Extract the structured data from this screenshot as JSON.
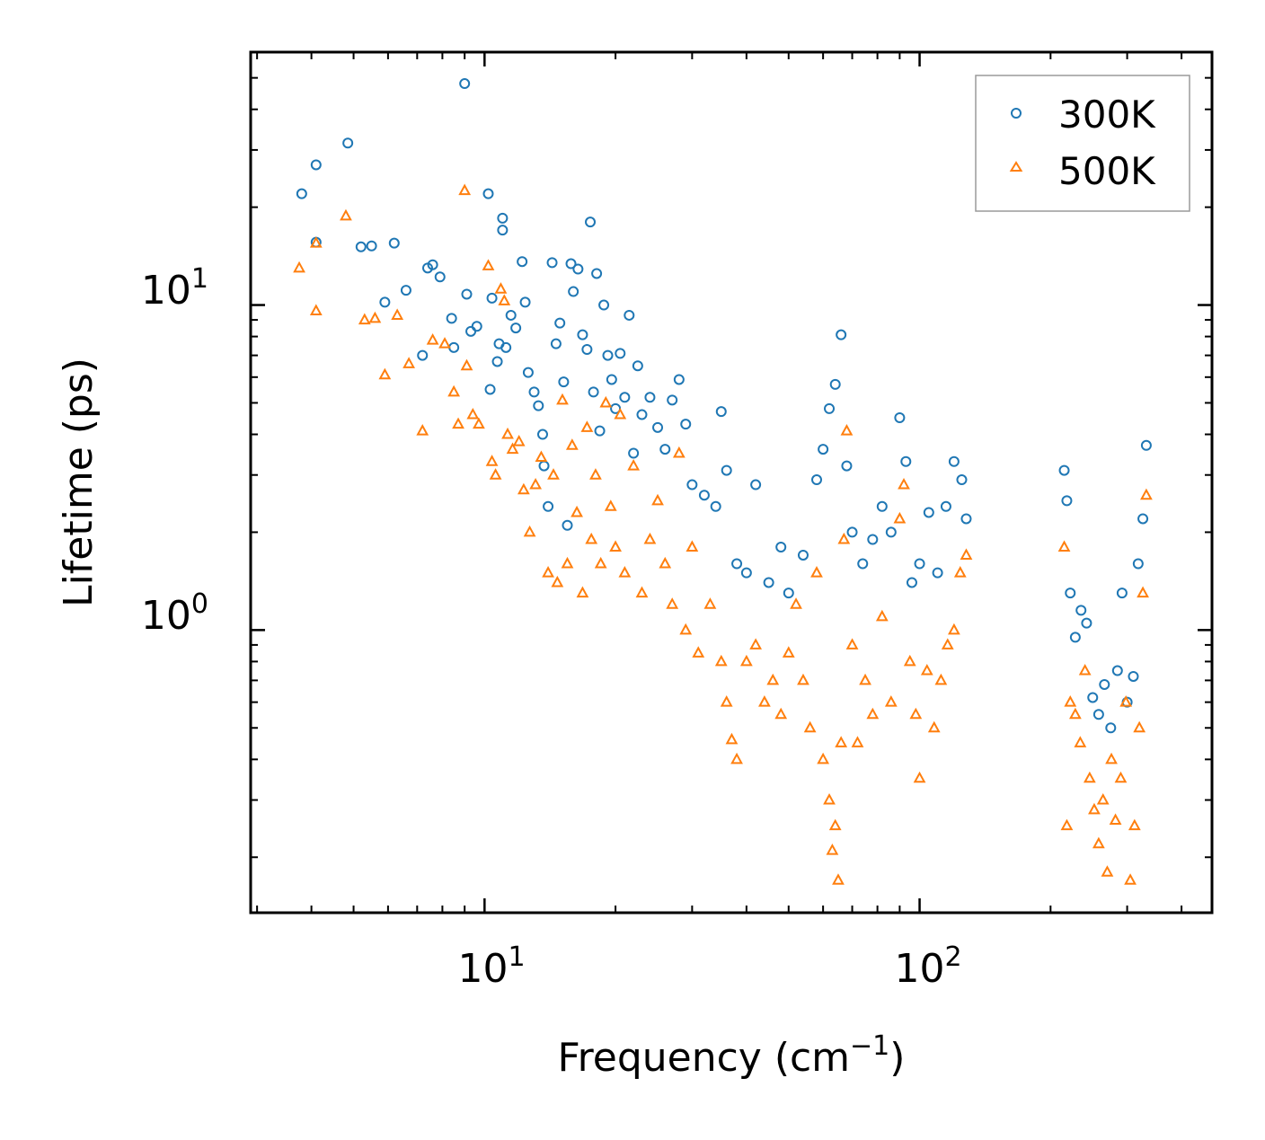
{
  "chart_data": {
    "type": "scatter",
    "title": "",
    "xlabel": "Frequency (cm",
    "xlabel_superscript": "−1",
    "xlabel_suffix": ")",
    "ylabel": "Lifetime (ps)",
    "xscale": "log",
    "yscale": "log",
    "xlim": [
      2.9,
      470
    ],
    "ylim": [
      0.135,
      60
    ],
    "legend_position": "top-right",
    "x_tick_labels": [
      {
        "base": "10",
        "exp": "1",
        "value": 10
      },
      {
        "base": "10",
        "exp": "2",
        "value": 100
      }
    ],
    "y_tick_labels": [
      {
        "base": "10",
        "exp": "0",
        "value": 1
      },
      {
        "base": "10",
        "exp": "1",
        "value": 10
      }
    ],
    "series": [
      {
        "name": "300K",
        "marker": "circle",
        "color": "#1f77b4",
        "points": [
          [
            3.8,
            22.0
          ],
          [
            4.1,
            27.0
          ],
          [
            4.1,
            15.6
          ],
          [
            4.85,
            31.5
          ],
          [
            5.2,
            15.1
          ],
          [
            5.5,
            15.2
          ],
          [
            6.2,
            15.5
          ],
          [
            5.9,
            10.2
          ],
          [
            6.6,
            11.1
          ],
          [
            7.2,
            7.0
          ],
          [
            7.4,
            13.0
          ],
          [
            7.6,
            13.3
          ],
          [
            7.9,
            12.2
          ],
          [
            8.4,
            9.1
          ],
          [
            8.5,
            7.4
          ],
          [
            9.0,
            48.0
          ],
          [
            9.1,
            10.8
          ],
          [
            9.3,
            8.3
          ],
          [
            9.6,
            8.6
          ],
          [
            10.2,
            22.0
          ],
          [
            10.3,
            5.5
          ],
          [
            10.4,
            10.5
          ],
          [
            10.7,
            6.7
          ],
          [
            10.8,
            7.6
          ],
          [
            11.0,
            18.5
          ],
          [
            11.0,
            17.0
          ],
          [
            11.2,
            7.4
          ],
          [
            11.5,
            9.3
          ],
          [
            11.8,
            8.5
          ],
          [
            12.2,
            13.6
          ],
          [
            12.4,
            10.2
          ],
          [
            12.6,
            6.2
          ],
          [
            13.0,
            5.4
          ],
          [
            13.3,
            4.9
          ],
          [
            13.6,
            4.0
          ],
          [
            13.7,
            3.2
          ],
          [
            14.0,
            2.4
          ],
          [
            14.3,
            13.5
          ],
          [
            14.6,
            7.6
          ],
          [
            14.9,
            8.8
          ],
          [
            15.2,
            5.8
          ],
          [
            15.5,
            2.1
          ],
          [
            15.8,
            13.4
          ],
          [
            16.0,
            11.0
          ],
          [
            16.4,
            12.9
          ],
          [
            16.8,
            8.1
          ],
          [
            17.2,
            7.3
          ],
          [
            17.5,
            18.0
          ],
          [
            17.8,
            5.4
          ],
          [
            18.1,
            12.5
          ],
          [
            18.4,
            4.1
          ],
          [
            18.8,
            10.0
          ],
          [
            19.2,
            7.0
          ],
          [
            19.6,
            5.9
          ],
          [
            20.0,
            4.8
          ],
          [
            20.5,
            7.1
          ],
          [
            21.0,
            5.2
          ],
          [
            21.5,
            9.3
          ],
          [
            22.0,
            3.5
          ],
          [
            22.5,
            6.5
          ],
          [
            23.0,
            4.6
          ],
          [
            24.0,
            5.2
          ],
          [
            25.0,
            4.2
          ],
          [
            26.0,
            3.6
          ],
          [
            27.0,
            5.1
          ],
          [
            28.0,
            5.9
          ],
          [
            29.0,
            4.3
          ],
          [
            30.0,
            2.8
          ],
          [
            32.0,
            2.6
          ],
          [
            34.0,
            2.4
          ],
          [
            35.0,
            4.7
          ],
          [
            36.0,
            3.1
          ],
          [
            38.0,
            1.6
          ],
          [
            40.0,
            1.5
          ],
          [
            42.0,
            2.8
          ],
          [
            45.0,
            1.4
          ],
          [
            48.0,
            1.8
          ],
          [
            50.0,
            1.3
          ],
          [
            54.0,
            1.7
          ],
          [
            58.0,
            2.9
          ],
          [
            60.0,
            3.6
          ],
          [
            62.0,
            4.8
          ],
          [
            64.0,
            5.7
          ],
          [
            66.0,
            8.1
          ],
          [
            68.0,
            3.2
          ],
          [
            70.0,
            2.0
          ],
          [
            74.0,
            1.6
          ],
          [
            78.0,
            1.9
          ],
          [
            82.0,
            2.4
          ],
          [
            86.0,
            2.0
          ],
          [
            90.0,
            4.5
          ],
          [
            93.0,
            3.3
          ],
          [
            96.0,
            1.4
          ],
          [
            100.0,
            1.6
          ],
          [
            105.0,
            2.3
          ],
          [
            110.0,
            1.5
          ],
          [
            115.0,
            2.4
          ],
          [
            120.0,
            3.3
          ],
          [
            125.0,
            2.9
          ],
          [
            128.0,
            2.2
          ],
          [
            215.0,
            3.1
          ],
          [
            218.0,
            2.5
          ],
          [
            222.0,
            1.3
          ],
          [
            228.0,
            0.95
          ],
          [
            235.0,
            1.15
          ],
          [
            242.0,
            1.05
          ],
          [
            250.0,
            0.62
          ],
          [
            258.0,
            0.55
          ],
          [
            266.0,
            0.68
          ],
          [
            275.0,
            0.5
          ],
          [
            285.0,
            0.75
          ],
          [
            292.0,
            1.3
          ],
          [
            300.0,
            0.6
          ],
          [
            310.0,
            0.72
          ],
          [
            318.0,
            1.6
          ],
          [
            326.0,
            2.2
          ],
          [
            332.0,
            3.7
          ]
        ]
      },
      {
        "name": "500K",
        "marker": "triangle",
        "color": "#ff7f0e",
        "points": [
          [
            3.75,
            13.0
          ],
          [
            4.1,
            9.6
          ],
          [
            4.1,
            15.5
          ],
          [
            4.8,
            18.8
          ],
          [
            5.3,
            9.0
          ],
          [
            5.6,
            9.1
          ],
          [
            5.9,
            6.1
          ],
          [
            6.3,
            9.3
          ],
          [
            6.7,
            6.6
          ],
          [
            7.2,
            4.1
          ],
          [
            7.6,
            7.8
          ],
          [
            8.1,
            7.6
          ],
          [
            8.5,
            5.4
          ],
          [
            8.7,
            4.3
          ],
          [
            9.0,
            22.5
          ],
          [
            9.1,
            6.5
          ],
          [
            9.4,
            4.6
          ],
          [
            9.7,
            4.3
          ],
          [
            10.2,
            13.2
          ],
          [
            10.4,
            3.3
          ],
          [
            10.6,
            3.0
          ],
          [
            10.9,
            11.2
          ],
          [
            11.1,
            10.3
          ],
          [
            11.3,
            4.0
          ],
          [
            11.6,
            3.6
          ],
          [
            12.0,
            3.8
          ],
          [
            12.3,
            2.7
          ],
          [
            12.7,
            2.0
          ],
          [
            13.1,
            2.8
          ],
          [
            13.5,
            3.4
          ],
          [
            14.0,
            1.5
          ],
          [
            14.4,
            3.0
          ],
          [
            14.7,
            1.4
          ],
          [
            15.1,
            5.1
          ],
          [
            15.5,
            1.6
          ],
          [
            15.9,
            3.7
          ],
          [
            16.3,
            2.3
          ],
          [
            16.8,
            1.3
          ],
          [
            17.2,
            4.2
          ],
          [
            17.6,
            1.9
          ],
          [
            18.0,
            3.0
          ],
          [
            18.5,
            1.6
          ],
          [
            19.0,
            5.0
          ],
          [
            19.5,
            2.4
          ],
          [
            20.0,
            1.8
          ],
          [
            20.5,
            4.6
          ],
          [
            21.0,
            1.5
          ],
          [
            22.0,
            3.2
          ],
          [
            23.0,
            1.3
          ],
          [
            24.0,
            1.9
          ],
          [
            25.0,
            2.5
          ],
          [
            26.0,
            1.6
          ],
          [
            27.0,
            1.2
          ],
          [
            28.0,
            3.5
          ],
          [
            29.0,
            1.0
          ],
          [
            30.0,
            1.8
          ],
          [
            31.0,
            0.85
          ],
          [
            33.0,
            1.2
          ],
          [
            35.0,
            0.8
          ],
          [
            36.0,
            0.6
          ],
          [
            37.0,
            0.46
          ],
          [
            38.0,
            0.4
          ],
          [
            40.0,
            0.8
          ],
          [
            42.0,
            0.9
          ],
          [
            44.0,
            0.6
          ],
          [
            46.0,
            0.7
          ],
          [
            48.0,
            0.55
          ],
          [
            50.0,
            0.85
          ],
          [
            52.0,
            1.2
          ],
          [
            54.0,
            0.7
          ],
          [
            56.0,
            0.5
          ],
          [
            58.0,
            1.5
          ],
          [
            60.0,
            0.4
          ],
          [
            62.0,
            0.3
          ],
          [
            63.0,
            0.21
          ],
          [
            64.0,
            0.25
          ],
          [
            65.0,
            0.17
          ],
          [
            66.0,
            0.45
          ],
          [
            67.0,
            1.9
          ],
          [
            68.0,
            4.1
          ],
          [
            70.0,
            0.9
          ],
          [
            72.0,
            0.45
          ],
          [
            75.0,
            0.7
          ],
          [
            78.0,
            0.55
          ],
          [
            82.0,
            1.1
          ],
          [
            86.0,
            0.6
          ],
          [
            90.0,
            2.2
          ],
          [
            92.0,
            2.8
          ],
          [
            95.0,
            0.8
          ],
          [
            98.0,
            0.55
          ],
          [
            100.0,
            0.35
          ],
          [
            104.0,
            0.75
          ],
          [
            108.0,
            0.5
          ],
          [
            112.0,
            0.7
          ],
          [
            116.0,
            0.9
          ],
          [
            120.0,
            1.0
          ],
          [
            124.0,
            1.5
          ],
          [
            128.0,
            1.7
          ],
          [
            215.0,
            1.8
          ],
          [
            218.0,
            0.25
          ],
          [
            222.0,
            0.6
          ],
          [
            228.0,
            0.55
          ],
          [
            234.0,
            0.45
          ],
          [
            240.0,
            0.75
          ],
          [
            246.0,
            0.35
          ],
          [
            252.0,
            0.28
          ],
          [
            258.0,
            0.22
          ],
          [
            264.0,
            0.3
          ],
          [
            270.0,
            0.18
          ],
          [
            276.0,
            0.4
          ],
          [
            282.0,
            0.26
          ],
          [
            290.0,
            0.35
          ],
          [
            298.0,
            0.6
          ],
          [
            305.0,
            0.17
          ],
          [
            312.0,
            0.25
          ],
          [
            320.0,
            0.5
          ],
          [
            326.0,
            1.3
          ],
          [
            332.0,
            2.6
          ]
        ]
      }
    ]
  }
}
